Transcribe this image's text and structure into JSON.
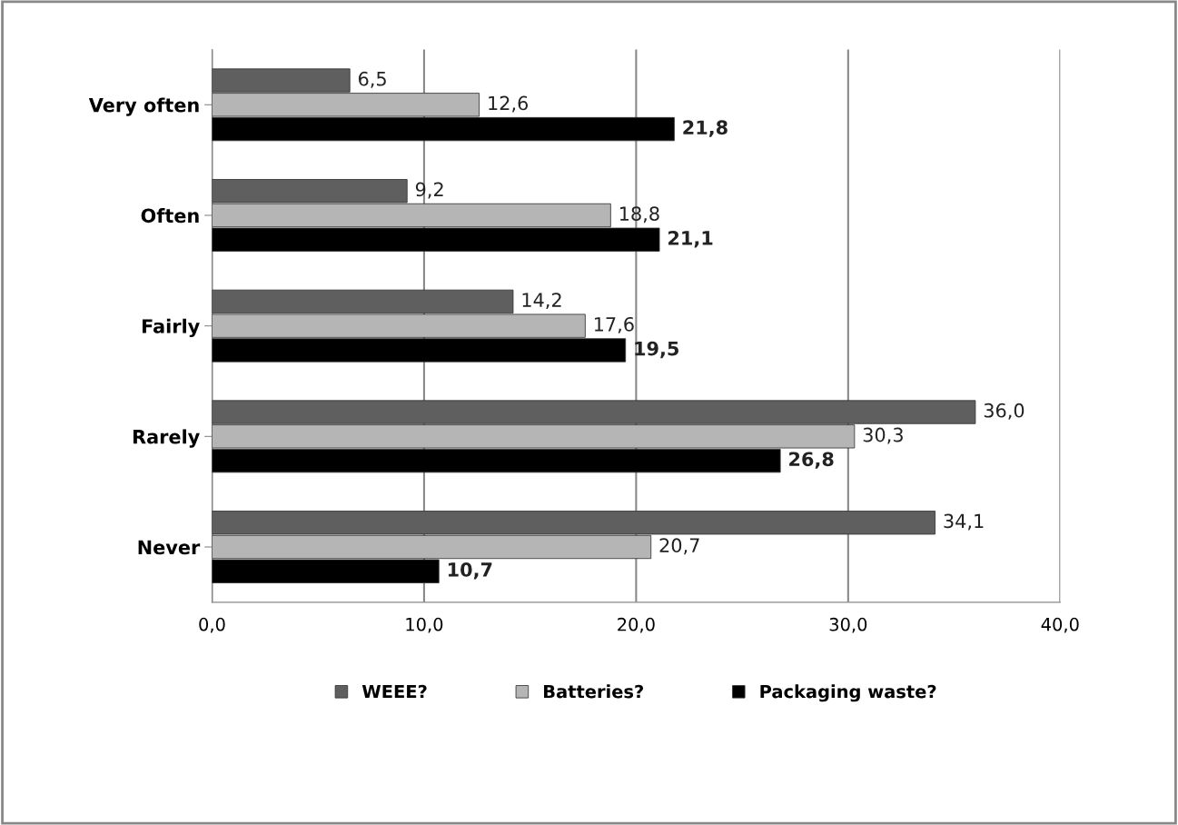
{
  "chart_data": {
    "type": "bar",
    "orientation": "horizontal",
    "categories": [
      "Very often",
      "Often",
      "Fairly",
      "Rarely",
      "Never"
    ],
    "series": [
      {
        "name": "WEEE?",
        "color": "#5f5f5f",
        "values": [
          6.5,
          9.2,
          14.2,
          36.0,
          34.1
        ],
        "value_labels": [
          "6,5",
          "9,2",
          "14,2",
          "36,0",
          "34,1"
        ]
      },
      {
        "name": "Batteries?",
        "color": "#b5b5b5",
        "values": [
          12.6,
          18.8,
          17.6,
          30.3,
          20.7
        ],
        "value_labels": [
          "12,6",
          "18,8",
          "17,6",
          "30,3",
          "20,7"
        ]
      },
      {
        "name": "Packaging waste?",
        "color": "#000000",
        "values": [
          21.8,
          21.1,
          19.5,
          26.8,
          10.7
        ],
        "value_labels": [
          "21,8",
          "21,1",
          "19,5",
          "26,8",
          "10,7"
        ]
      }
    ],
    "xlim": [
      0,
      40
    ],
    "xticks": [
      {
        "value": 0,
        "label": "0,0"
      },
      {
        "value": 10,
        "label": "10,0"
      },
      {
        "value": 20,
        "label": "20,0"
      },
      {
        "value": 30,
        "label": "30,0"
      },
      {
        "value": 40,
        "label": "40,0"
      }
    ],
    "grid": "x",
    "legend": "bottom"
  }
}
